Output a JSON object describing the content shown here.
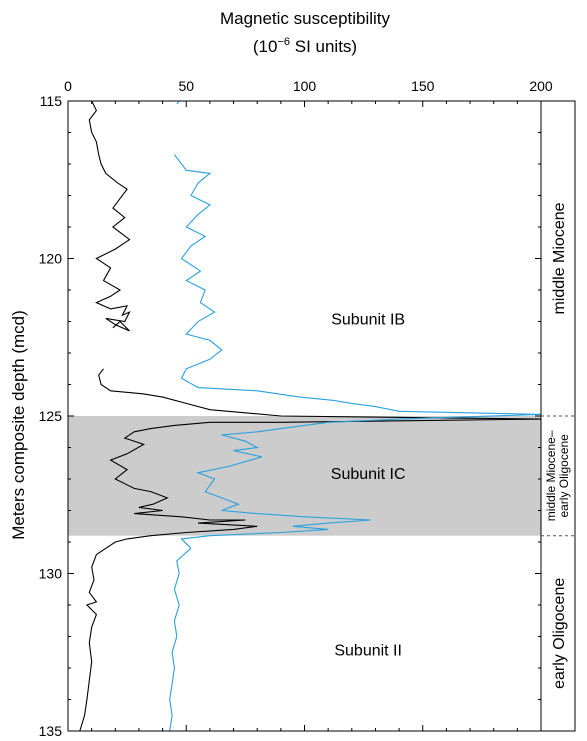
{
  "chart_data": {
    "type": "line",
    "title_line1": "Magnetic susceptibility",
    "title_line2_prefix": "(10",
    "title_line2_exponent": "−6",
    "title_line2_suffix": " SI units)",
    "ylabel": "Meters composite depth (mcd)",
    "xlim": [
      0,
      200
    ],
    "ylim": [
      115,
      135
    ],
    "y_inverted": true,
    "x_ticks": [
      0,
      50,
      100,
      150,
      200
    ],
    "y_ticks": [
      115,
      120,
      125,
      130,
      135
    ],
    "grid": false,
    "series": [
      {
        "color": "#000000",
        "points": [
          [
            10,
            115.0
          ],
          [
            12,
            115.3
          ],
          [
            9,
            115.6
          ],
          [
            10,
            116.0
          ],
          [
            12,
            116.3
          ],
          [
            13,
            116.7
          ],
          [
            14,
            117.0
          ],
          [
            16,
            117.3
          ],
          [
            21,
            117.6
          ],
          [
            25,
            117.8
          ],
          [
            22,
            118.1
          ],
          [
            19,
            118.4
          ],
          [
            24,
            118.7
          ],
          [
            19,
            119.0
          ],
          [
            26,
            119.4
          ],
          [
            20,
            119.7
          ],
          [
            12,
            120.0
          ],
          [
            18,
            120.3
          ],
          [
            15,
            120.7
          ],
          [
            22,
            121.0
          ],
          [
            18,
            121.2
          ],
          [
            12,
            121.4
          ],
          [
            18,
            121.6
          ],
          [
            25,
            121.5
          ],
          [
            23,
            121.8
          ],
          [
            26,
            121.7
          ],
          [
            24,
            122.0
          ],
          [
            16,
            121.9
          ],
          [
            20,
            122.1
          ],
          [
            26,
            122.3
          ],
          [
            22,
            122.0
          ],
          [
            19,
            122.2
          ]
        ],
        "points_b": [
          [
            15,
            123.5
          ],
          [
            13,
            123.7
          ],
          [
            14,
            124.0
          ],
          [
            18,
            124.2
          ],
          [
            32,
            124.3
          ],
          [
            40,
            124.4
          ],
          [
            50,
            124.6
          ],
          [
            60,
            124.8
          ],
          [
            90,
            125.0
          ],
          [
            200,
            125.1
          ]
        ],
        "points_c": [
          [
            200,
            125.1
          ],
          [
            90,
            125.2
          ],
          [
            60,
            125.2
          ],
          [
            45,
            125.3
          ],
          [
            35,
            125.4
          ],
          [
            28,
            125.5
          ],
          [
            24,
            125.7
          ],
          [
            32,
            125.9
          ],
          [
            25,
            126.2
          ],
          [
            18,
            126.4
          ],
          [
            25,
            126.7
          ],
          [
            20,
            127.0
          ],
          [
            28,
            127.3
          ],
          [
            35,
            127.4
          ],
          [
            42,
            127.6
          ],
          [
            36,
            127.8
          ],
          [
            30,
            127.9
          ],
          [
            40,
            128.0
          ],
          [
            28,
            128.1
          ],
          [
            48,
            128.2
          ],
          [
            60,
            128.3
          ],
          [
            75,
            128.3
          ],
          [
            55,
            128.4
          ],
          [
            80,
            128.5
          ],
          [
            70,
            128.6
          ],
          [
            50,
            128.7
          ],
          [
            35,
            128.8
          ],
          [
            25,
            128.9
          ],
          [
            20,
            129.0
          ],
          [
            16,
            129.2
          ],
          [
            12,
            129.4
          ]
        ],
        "points_d": [
          [
            12,
            129.4
          ],
          [
            10,
            129.8
          ],
          [
            11,
            130.2
          ],
          [
            9,
            130.6
          ],
          [
            12,
            130.9
          ],
          [
            8,
            131.0
          ],
          [
            12,
            131.3
          ],
          [
            10,
            131.7
          ],
          [
            9,
            132.2
          ],
          [
            10,
            132.8
          ],
          [
            9,
            133.4
          ],
          [
            8,
            134.0
          ],
          [
            7,
            134.5
          ],
          [
            5,
            135.0
          ]
        ]
      },
      {
        "color": "#2aa0dd",
        "points": [
          [
            47,
            115.0
          ],
          [
            46,
            115.1
          ]
        ],
        "points_b": [
          [
            45,
            116.7
          ],
          [
            50,
            117.2
          ],
          [
            60,
            117.3
          ],
          [
            55,
            117.6
          ],
          [
            52,
            118.0
          ],
          [
            60,
            118.3
          ],
          [
            55,
            118.6
          ],
          [
            50,
            119.0
          ],
          [
            58,
            119.3
          ],
          [
            52,
            119.6
          ],
          [
            48,
            120.0
          ],
          [
            56,
            120.4
          ],
          [
            50,
            120.7
          ],
          [
            58,
            121.0
          ],
          [
            56,
            121.4
          ],
          [
            62,
            121.7
          ],
          [
            55,
            122.0
          ],
          [
            50,
            122.4
          ],
          [
            60,
            122.6
          ],
          [
            65,
            122.9
          ],
          [
            60,
            123.2
          ],
          [
            50,
            123.5
          ],
          [
            48,
            123.8
          ],
          [
            55,
            124.1
          ],
          [
            80,
            124.2
          ],
          [
            98,
            124.4
          ],
          [
            112,
            124.5
          ],
          [
            120,
            124.6
          ],
          [
            130,
            124.7
          ],
          [
            140,
            124.85
          ],
          [
            200,
            124.95
          ]
        ],
        "points_c": [
          [
            200,
            124.95
          ],
          [
            140,
            125.1
          ],
          [
            110,
            125.2
          ],
          [
            100,
            125.3
          ],
          [
            90,
            125.4
          ],
          [
            80,
            125.5
          ],
          [
            65,
            125.6
          ],
          [
            75,
            125.8
          ],
          [
            80,
            126.0
          ],
          [
            70,
            126.1
          ],
          [
            82,
            126.3
          ],
          [
            68,
            126.6
          ],
          [
            55,
            126.8
          ],
          [
            62,
            127.0
          ],
          [
            58,
            127.4
          ],
          [
            65,
            127.6
          ],
          [
            72,
            127.8
          ],
          [
            65,
            128.0
          ],
          [
            80,
            128.1
          ],
          [
            100,
            128.2
          ],
          [
            128,
            128.3
          ],
          [
            110,
            128.4
          ],
          [
            95,
            128.5
          ],
          [
            110,
            128.6
          ],
          [
            90,
            128.7
          ],
          [
            60,
            128.8
          ],
          [
            48,
            128.9
          ],
          [
            52,
            129.2
          ]
        ],
        "points_d": [
          [
            52,
            129.2
          ],
          [
            46,
            129.6
          ],
          [
            47,
            130.0
          ],
          [
            45,
            130.5
          ],
          [
            47,
            131.0
          ],
          [
            45,
            131.5
          ],
          [
            46,
            132.0
          ],
          [
            44,
            132.5
          ],
          [
            45,
            133.0
          ],
          [
            44,
            133.5
          ],
          [
            43,
            134.0
          ],
          [
            44,
            134.5
          ],
          [
            43,
            135.0
          ]
        ]
      }
    ],
    "units": [
      {
        "label": "Subunit IB",
        "x": 110,
        "y": 122.1
      },
      {
        "label": "Subunit IC",
        "x": 110,
        "y": 127.0
      },
      {
        "label": "Subunit II",
        "x": 110,
        "y": 132.6
      }
    ],
    "shaded_band": {
      "from": 125.0,
      "to": 128.8,
      "color": "#cccccc"
    },
    "ages": [
      {
        "lines": [
          "middle Miocene"
        ],
        "from": 115.0,
        "to": 125.0
      },
      {
        "lines": [
          "middle Miocene–",
          "early Oligocene"
        ],
        "from": 125.0,
        "to": 128.8
      },
      {
        "lines": [
          "early Oligocene"
        ],
        "from": 128.8,
        "to": 135.0
      }
    ]
  }
}
